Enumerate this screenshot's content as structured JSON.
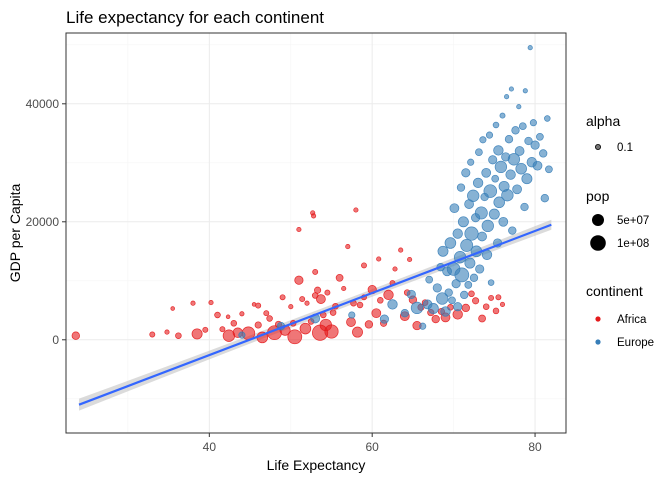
{
  "chart_data": {
    "type": "scatter",
    "title": "Life expectancy for each continent",
    "xlabel": "Life Expectancy",
    "ylabel": "GDP per Capita",
    "xlim": [
      22.4,
      83.8
    ],
    "ylim": [
      -15800,
      52000
    ],
    "xticks": [
      40,
      60,
      80
    ],
    "yticks": [
      0,
      20000,
      40000
    ],
    "xtick_labels": [
      "40",
      "60",
      "80"
    ],
    "ytick_labels": [
      "0",
      "20000",
      "40000"
    ],
    "grid": true,
    "legend_position": "right",
    "colors": {
      "africa": "#e41a1c",
      "europe": "#377eb8",
      "trend": "#3366ff",
      "band": "#bdbdbd",
      "grid_major": "#ebebeb",
      "grid_minor": "#f5f5f5",
      "panel_border": "#333333"
    },
    "legends": {
      "alpha": {
        "title": "alpha",
        "labels": [
          "0.1"
        ]
      },
      "pop": {
        "title": "pop",
        "labels": [
          "5e+07",
          "1e+08"
        ]
      },
      "continent": {
        "title": "continent",
        "labels": [
          "Africa",
          "Europe"
        ]
      }
    },
    "series": [
      {
        "name": "Africa",
        "color": "#e41a1c",
        "points": [
          [
            23.6,
            700,
            1.2
          ],
          [
            33.0,
            900,
            0.8
          ],
          [
            34.8,
            1300,
            0.7
          ],
          [
            35.5,
            5300,
            0.6
          ],
          [
            36.2,
            700,
            0.9
          ],
          [
            38.0,
            6200,
            0.7
          ],
          [
            38.5,
            1000,
            1.6
          ],
          [
            39.5,
            1700,
            0.8
          ],
          [
            40.2,
            6300,
            0.7
          ],
          [
            41.0,
            4200,
            0.9
          ],
          [
            41.6,
            1800,
            0.8
          ],
          [
            42.3,
            3900,
            0.6
          ],
          [
            42.4,
            700,
            1.8
          ],
          [
            43.0,
            2800,
            0.9
          ],
          [
            43.5,
            1200,
            1.5
          ],
          [
            44.0,
            4400,
            0.7
          ],
          [
            44.8,
            1100,
            2.0
          ],
          [
            45.5,
            6000,
            0.6
          ],
          [
            46.0,
            2500,
            1.0
          ],
          [
            46.0,
            5800,
            0.8
          ],
          [
            46.5,
            400,
            1.7
          ],
          [
            47.0,
            4500,
            0.8
          ],
          [
            47.4,
            3600,
            0.9
          ],
          [
            48.0,
            1200,
            2.2
          ],
          [
            48.5,
            2600,
            1.0
          ],
          [
            49.0,
            7200,
            0.8
          ],
          [
            49.3,
            1600,
            1.6
          ],
          [
            50.0,
            5600,
            0.7
          ],
          [
            50.3,
            2800,
            0.9
          ],
          [
            50.5,
            500,
            2.2
          ],
          [
            51.0,
            10100,
            1.3
          ],
          [
            51.0,
            18700,
            0.7
          ],
          [
            51.4,
            6900,
            0.8
          ],
          [
            51.8,
            1900,
            1.7
          ],
          [
            52.0,
            6200,
            0.7
          ],
          [
            52.5,
            3100,
            0.9
          ],
          [
            52.7,
            21500,
            0.7
          ],
          [
            52.8,
            21000,
            0.7
          ],
          [
            53.0,
            11500,
            0.8
          ],
          [
            53.0,
            7500,
            0.9
          ],
          [
            53.3,
            8400,
            1.0
          ],
          [
            53.6,
            1200,
            2.4
          ],
          [
            53.7,
            6900,
            1.4
          ],
          [
            54.0,
            4200,
            0.9
          ],
          [
            54.3,
            2500,
            1.8
          ],
          [
            54.5,
            8000,
            0.8
          ],
          [
            55.0,
            1400,
            2.1
          ],
          [
            55.2,
            4600,
            0.9
          ],
          [
            55.5,
            5700,
            0.9
          ],
          [
            56.0,
            10500,
            1.1
          ],
          [
            56.5,
            8700,
            0.7
          ],
          [
            57.0,
            15800,
            0.7
          ],
          [
            57.4,
            3000,
            1.4
          ],
          [
            57.7,
            6200,
            0.9
          ],
          [
            58.0,
            22000,
            0.7
          ],
          [
            58.2,
            1300,
            1.6
          ],
          [
            58.5,
            5900,
            0.9
          ],
          [
            59.0,
            7200,
            0.8
          ],
          [
            59.0,
            12600,
            0.8
          ],
          [
            59.6,
            2600,
            1.2
          ],
          [
            60.0,
            8500,
            1.3
          ],
          [
            60.5,
            4500,
            1.4
          ],
          [
            60.8,
            13700,
            0.7
          ],
          [
            61.0,
            6700,
            0.9
          ],
          [
            61.4,
            2800,
            1.0
          ],
          [
            62.0,
            7600,
            1.5
          ],
          [
            62.5,
            9600,
            0.8
          ],
          [
            62.8,
            12000,
            0.7
          ],
          [
            63.5,
            15200,
            0.7
          ],
          [
            64.0,
            4000,
            1.4
          ],
          [
            64.3,
            8000,
            0.9
          ],
          [
            64.6,
            13600,
            0.7
          ],
          [
            65.0,
            6800,
            1.2
          ],
          [
            65.5,
            2400,
            1.3
          ],
          [
            66.0,
            5500,
            1.0
          ],
          [
            66.5,
            6300,
            0.9
          ],
          [
            67.2,
            4600,
            1.0
          ],
          [
            67.8,
            3500,
            1.2
          ],
          [
            68.5,
            4800,
            1.0
          ],
          [
            69.0,
            3800,
            1.4
          ],
          [
            69.6,
            5500,
            0.9
          ],
          [
            70.5,
            4300,
            1.5
          ],
          [
            71.5,
            5400,
            1.2
          ],
          [
            72.2,
            7800,
            0.9
          ],
          [
            72.7,
            6600,
            1.0
          ],
          [
            73.5,
            3600,
            1.1
          ],
          [
            74.0,
            5600,
            0.9
          ],
          [
            74.6,
            7100,
            0.8
          ],
          [
            75.2,
            4900,
            0.9
          ],
          [
            75.5,
            7200,
            0.8
          ],
          [
            76.0,
            6000,
            0.7
          ]
        ]
      },
      {
        "name": "Europe",
        "color": "#377eb8",
        "points": [
          [
            44.0,
            800,
            1.0
          ],
          [
            48.8,
            2300,
            1.2
          ],
          [
            53.0,
            3600,
            1.4
          ],
          [
            57.5,
            4200,
            1.0
          ],
          [
            61.5,
            3500,
            1.3
          ],
          [
            62.5,
            6000,
            1.5
          ],
          [
            64.0,
            4500,
            1.2
          ],
          [
            64.8,
            7700,
            1.3
          ],
          [
            65.5,
            5400,
            1.8
          ],
          [
            66.2,
            2300,
            1.0
          ],
          [
            66.8,
            6000,
            1.4
          ],
          [
            67.0,
            10200,
            1.1
          ],
          [
            67.5,
            5300,
            1.6
          ],
          [
            68.0,
            8800,
            1.3
          ],
          [
            68.4,
            12300,
            1.2
          ],
          [
            68.6,
            7000,
            1.8
          ],
          [
            68.7,
            15000,
            1.6
          ],
          [
            69.0,
            4800,
            1.5
          ],
          [
            69.2,
            11600,
            1.4
          ],
          [
            69.4,
            8000,
            1.2
          ],
          [
            69.6,
            16400,
            1.7
          ],
          [
            69.8,
            6700,
            1.1
          ],
          [
            70.0,
            12000,
            2.0
          ],
          [
            70.1,
            22300,
            1.4
          ],
          [
            70.3,
            9500,
            1.3
          ],
          [
            70.5,
            5600,
            1.3
          ],
          [
            70.5,
            18000,
            1.5
          ],
          [
            70.8,
            14000,
            1.8
          ],
          [
            70.9,
            25800,
            1.2
          ],
          [
            71.0,
            11000,
            2.2
          ],
          [
            71.2,
            20000,
            1.6
          ],
          [
            71.3,
            7600,
            1.2
          ],
          [
            71.5,
            28300,
            1.3
          ],
          [
            71.6,
            16000,
            1.9
          ],
          [
            71.8,
            9300,
            1.1
          ],
          [
            71.9,
            23000,
            1.4
          ],
          [
            72.0,
            13000,
            1.6
          ],
          [
            72.1,
            30100,
            1.0
          ],
          [
            72.2,
            18000,
            2.1
          ],
          [
            72.4,
            24400,
            1.8
          ],
          [
            72.5,
            10500,
            1.2
          ],
          [
            72.7,
            20700,
            1.3
          ],
          [
            72.8,
            15000,
            1.7
          ],
          [
            73.0,
            26600,
            1.5
          ],
          [
            73.1,
            31800,
            1.1
          ],
          [
            73.2,
            12000,
            1.3
          ],
          [
            73.4,
            21500,
            1.9
          ],
          [
            73.5,
            17500,
            1.4
          ],
          [
            73.6,
            33900,
            1.0
          ],
          [
            73.8,
            24200,
            1.2
          ],
          [
            74.0,
            28300,
            1.4
          ],
          [
            74.1,
            14400,
            1.5
          ],
          [
            74.2,
            19300,
            1.8
          ],
          [
            74.4,
            34700,
            1.0
          ],
          [
            74.5,
            25200,
            2.0
          ],
          [
            74.6,
            9700,
            0.9
          ],
          [
            74.8,
            30500,
            1.3
          ],
          [
            75.0,
            21300,
            1.6
          ],
          [
            75.1,
            27300,
            1.1
          ],
          [
            75.2,
            36400,
            0.9
          ],
          [
            75.4,
            16400,
            1.3
          ],
          [
            75.5,
            32100,
            1.5
          ],
          [
            75.6,
            23300,
            1.7
          ],
          [
            75.8,
            29300,
            1.8
          ],
          [
            76.0,
            38000,
            0.8
          ],
          [
            76.1,
            20000,
            1.4
          ],
          [
            76.2,
            26000,
            1.6
          ],
          [
            76.4,
            31000,
            1.3
          ],
          [
            76.5,
            41200,
            0.7
          ],
          [
            76.6,
            24500,
            1.8
          ],
          [
            76.8,
            34000,
            1.2
          ],
          [
            77.0,
            28000,
            1.5
          ],
          [
            77.1,
            42500,
            0.7
          ],
          [
            77.2,
            18500,
            1.2
          ],
          [
            77.4,
            30600,
            1.8
          ],
          [
            77.6,
            35500,
            1.2
          ],
          [
            77.8,
            25500,
            1.4
          ],
          [
            78.0,
            39500,
            0.7
          ],
          [
            78.1,
            32000,
            1.4
          ],
          [
            78.3,
            29000,
            1.7
          ],
          [
            78.5,
            36200,
            1.1
          ],
          [
            78.7,
            22500,
            1.2
          ],
          [
            78.8,
            42200,
            0.7
          ],
          [
            79.0,
            27300,
            1.6
          ],
          [
            79.2,
            33700,
            1.2
          ],
          [
            79.4,
            49500,
            0.7
          ],
          [
            79.6,
            30100,
            1.5
          ],
          [
            79.8,
            36800,
            1.0
          ],
          [
            80.0,
            33000,
            1.3
          ],
          [
            80.3,
            29500,
            1.4
          ],
          [
            80.6,
            34400,
            1.1
          ],
          [
            81.0,
            31600,
            1.2
          ],
          [
            81.2,
            24000,
            1.2
          ],
          [
            81.5,
            37500,
            0.9
          ],
          [
            81.7,
            28900,
            1.1
          ]
        ]
      }
    ],
    "trend_line": {
      "x": [
        24.0,
        82.0
      ],
      "y": [
        -11000,
        19500
      ]
    }
  }
}
